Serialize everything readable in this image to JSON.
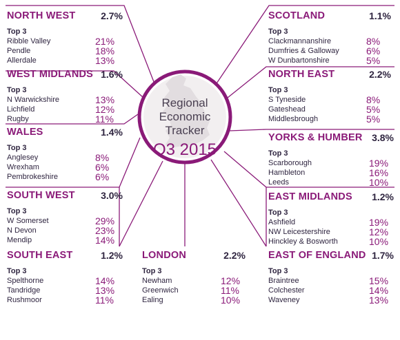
{
  "center": {
    "title_lines": [
      "Regional",
      "Economic",
      "Tracker"
    ],
    "period": "Q3 2015"
  },
  "colors": {
    "accent": "#8a1a78",
    "text": "#2f2540"
  },
  "top_label": "Top 3",
  "regions": [
    {
      "name": "NORTH WEST",
      "pct": "2.7%",
      "areas": [
        {
          "name": "Ribble Valley",
          "pct": "21%"
        },
        {
          "name": "Pendle",
          "pct": "18%"
        },
        {
          "name": "Allerdale",
          "pct": "13%"
        }
      ]
    },
    {
      "name": "WEST MIDLANDS",
      "pct": "1.6%",
      "areas": [
        {
          "name": "N Warwickshire",
          "pct": "13%"
        },
        {
          "name": "Lichfield",
          "pct": "12%"
        },
        {
          "name": "Rugby",
          "pct": "11%"
        }
      ]
    },
    {
      "name": "WALES",
      "pct": "1.4%",
      "areas": [
        {
          "name": "Anglesey",
          "pct": "8%"
        },
        {
          "name": "Wrexham",
          "pct": "6%"
        },
        {
          "name": "Pembrokeshire",
          "pct": "6%"
        }
      ]
    },
    {
      "name": "SOUTH WEST",
      "pct": "3.0%",
      "areas": [
        {
          "name": "W Somerset",
          "pct": "29%"
        },
        {
          "name": "N Devon",
          "pct": "23%"
        },
        {
          "name": "Mendip",
          "pct": "14%"
        }
      ]
    },
    {
      "name": "SOUTH EAST",
      "pct": "1.2%",
      "areas": [
        {
          "name": "Spelthorne",
          "pct": "14%"
        },
        {
          "name": "Tandridge",
          "pct": "13%"
        },
        {
          "name": "Rushmoor",
          "pct": "11%"
        }
      ]
    },
    {
      "name": "LONDON",
      "pct": "2.2%",
      "areas": [
        {
          "name": "Newham",
          "pct": "12%"
        },
        {
          "name": "Greenwich",
          "pct": "11%"
        },
        {
          "name": "Ealing",
          "pct": "10%"
        }
      ]
    },
    {
      "name": "SCOTLAND",
      "pct": "1.1%",
      "areas": [
        {
          "name": "Clackmannanshire",
          "pct": "8%"
        },
        {
          "name": "Dumfries & Galloway",
          "pct": "6%"
        },
        {
          "name": "W Dunbartonshire",
          "pct": "5%"
        }
      ]
    },
    {
      "name": "NORTH EAST",
      "pct": "2.2%",
      "areas": [
        {
          "name": "S Tyneside",
          "pct": "8%"
        },
        {
          "name": "Gateshead",
          "pct": "5%"
        },
        {
          "name": "Middlesbrough",
          "pct": "5%"
        }
      ]
    },
    {
      "name": "YORKS & HUMBER",
      "pct": "3.8%",
      "areas": [
        {
          "name": "Scarborough",
          "pct": "19%"
        },
        {
          "name": "Hambleton",
          "pct": "16%"
        },
        {
          "name": "Leeds",
          "pct": "10%"
        }
      ]
    },
    {
      "name": "EAST MIDLANDS",
      "pct": "1.2%",
      "areas": [
        {
          "name": "Ashfield",
          "pct": "19%"
        },
        {
          "name": "NW Leicestershire",
          "pct": "12%"
        },
        {
          "name": "Hinckley & Bosworth",
          "pct": "10%"
        }
      ]
    },
    {
      "name": "EAST OF ENGLAND",
      "pct": "1.7%",
      "areas": [
        {
          "name": "Braintree",
          "pct": "15%"
        },
        {
          "name": "Colchester",
          "pct": "14%"
        },
        {
          "name": "Waveney",
          "pct": "13%"
        }
      ]
    }
  ]
}
